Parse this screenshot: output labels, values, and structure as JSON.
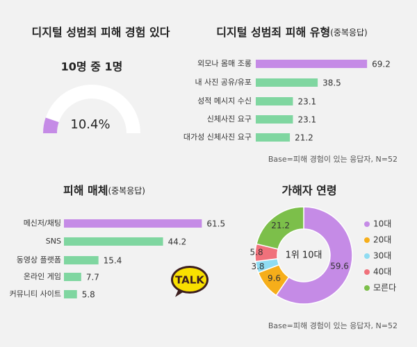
{
  "chart_data": [
    {
      "type": "gauge",
      "title": "디지털 성범죄 피해 경험 있다",
      "subtitle": "10명 중 1명",
      "value": 10.4,
      "value_labels": "10.4%",
      "ylim": [
        0,
        100
      ],
      "color": "#c58be6",
      "track_color": "#ffffff"
    },
    {
      "type": "hbar",
      "title": "디지털 성범죄 피해 유형",
      "title_note": "(중복응답)",
      "categories": [
        "외모나 몸매 조롱",
        "내 사진 공유/유포",
        "성적 메시지 수신",
        "신체사진 요구",
        "대가성 신체사진 요구"
      ],
      "values": [
        69.2,
        38.5,
        23.1,
        23.1,
        21.2
      ],
      "colors": [
        "#c58be6",
        "#7fd6a0",
        "#7fd6a0",
        "#7fd6a0",
        "#7fd6a0"
      ],
      "xlim": [
        0,
        70
      ],
      "note": "Base=피해 경험이 있는 응답자, N=52"
    },
    {
      "type": "hbar",
      "title": "피해 매체",
      "title_note": "(중복응답)",
      "categories": [
        "메신저/채팅",
        "SNS",
        "동영상 플랫폼",
        "온라인 게임",
        "커뮤니티 사이트"
      ],
      "values": [
        61.5,
        44.2,
        15.4,
        7.7,
        5.8
      ],
      "colors": [
        "#c58be6",
        "#7fd6a0",
        "#7fd6a0",
        "#7fd6a0",
        "#7fd6a0"
      ],
      "xlim": [
        0,
        62
      ]
    },
    {
      "type": "donut",
      "title": "가해자 연령",
      "center_label": "1위 10대",
      "categories": [
        "10대",
        "20대",
        "30대",
        "40대",
        "모른다"
      ],
      "values": [
        59.6,
        9.6,
        3.8,
        5.8,
        21.2
      ],
      "colors": [
        "#c58be6",
        "#f6ae1a",
        "#8fdcf2",
        "#f0717b",
        "#7cbf4a"
      ],
      "note": "Base=피해 경험이 있는 응답자, N=52"
    }
  ],
  "logo": "TALK"
}
